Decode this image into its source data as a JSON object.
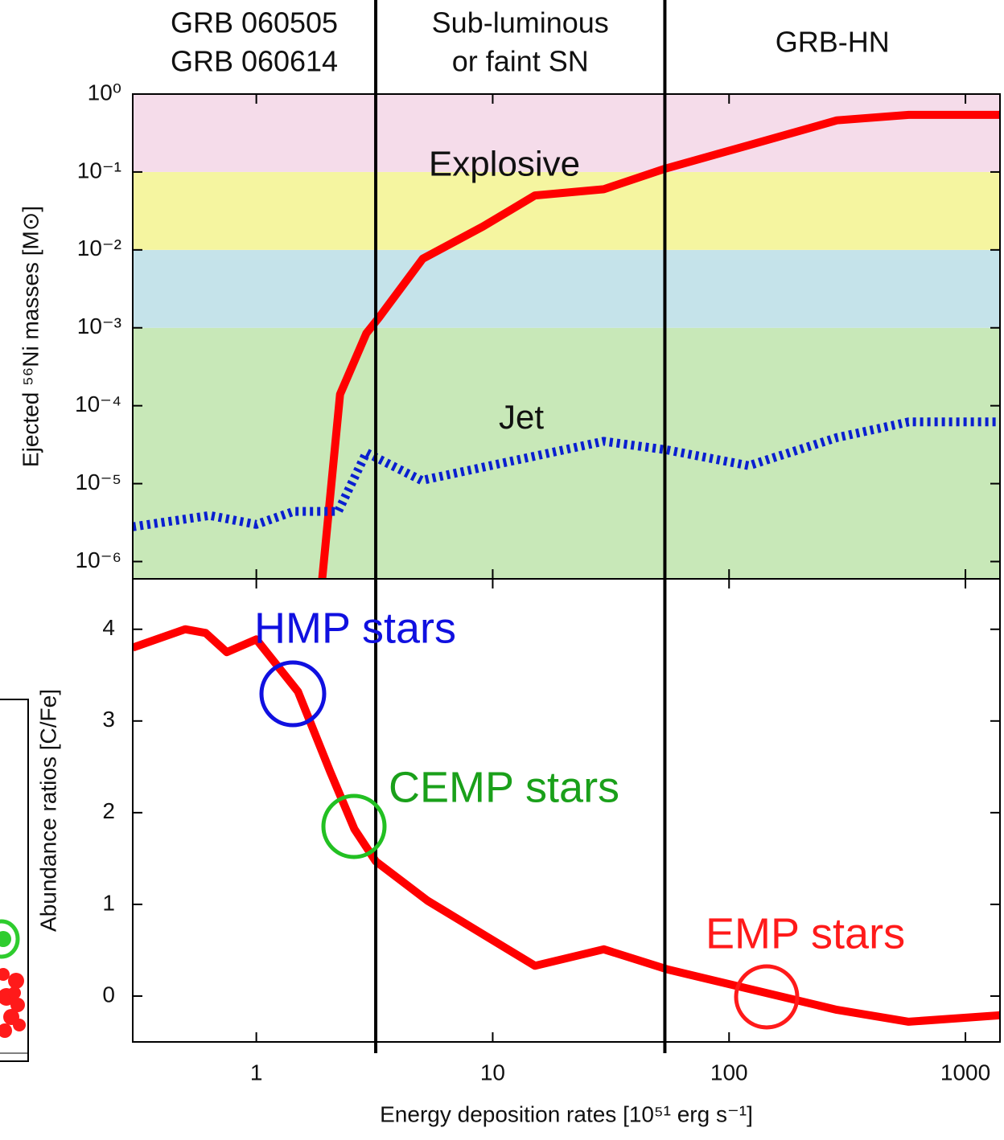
{
  "chart_data": [
    {
      "type": "line",
      "header_regions": [
        [
          "GRB 060505",
          "GRB 060614"
        ],
        [
          "Sub-luminous",
          "or faint SN"
        ],
        [
          "GRB-HN"
        ]
      ],
      "ylabel": "Ejected ⁵⁶Ni masses [M⊙]",
      "xscale": "log",
      "yscale": "log",
      "xlim": [
        0.3,
        1400
      ],
      "ylim": [
        6e-07,
        1
      ],
      "xticks": [
        1,
        10,
        100,
        1000
      ],
      "yticks": [
        {
          "value": 1,
          "label": "10⁰"
        },
        {
          "value": 0.1,
          "label": "10⁻¹"
        },
        {
          "value": 0.01,
          "label": "10⁻²"
        },
        {
          "value": 0.001,
          "label": "10⁻³"
        },
        {
          "value": 0.0001,
          "label": "10⁻⁴"
        },
        {
          "value": 1e-05,
          "label": "10⁻⁵"
        },
        {
          "value": 1e-06,
          "label": "10⁻⁶"
        }
      ],
      "band_edges": [
        0.001,
        0.01,
        0.1
      ],
      "band_colors": [
        "#c8e8b8",
        "#c5e3ea",
        "#f5f5a0",
        "#f5dcea"
      ],
      "vlines": [
        3.2,
        53.5
      ],
      "series": [
        {
          "name": "Explosive",
          "color": "#ff0000",
          "style": "solid",
          "x": [
            1.9,
            2.26,
            2.92,
            3.3,
            5.06,
            9.1,
            15.1,
            29.5,
            53.5,
            121,
            286,
            575,
            1400
          ],
          "values": [
            6e-07,
            0.00014,
            0.00085,
            0.00135,
            0.0077,
            0.02,
            0.05,
            0.06,
            0.11,
            0.22,
            0.46,
            0.54,
            0.54
          ]
        },
        {
          "name": "Jet",
          "color": "#0a1fd0",
          "style": "dotted",
          "x": [
            0.3,
            0.635,
            1.0,
            1.44,
            2.22,
            2.92,
            5.0,
            29.5,
            55,
            121,
            286,
            575,
            1400
          ],
          "values": [
            2.8e-06,
            3.9e-06,
            3e-06,
            4.4e-06,
            4.4e-06,
            2.5e-05,
            1.1e-05,
            3.5e-05,
            2.7e-05,
            1.7e-05,
            3.9e-05,
            6.2e-05,
            6.2e-05
          ]
        }
      ]
    },
    {
      "type": "line",
      "xlabel": "Energy deposition rates [10⁵¹ erg s⁻¹]",
      "ylabel": "Abundance ratios [C/Fe]",
      "xscale": "log",
      "xlim": [
        0.3,
        1400
      ],
      "ylim": [
        -0.5,
        4.55
      ],
      "xticks": [
        1,
        10,
        100,
        1000
      ],
      "yticks": [
        0,
        1,
        2,
        3,
        4
      ],
      "annotations": [
        "HMP stars",
        "CEMP stars",
        "EMP stars"
      ],
      "series": [
        {
          "color": "#ff0000",
          "style": "solid",
          "x": [
            0.3,
            0.5,
            0.61,
            0.75,
            1.0,
            1.5,
            2.06,
            2.6,
            3.2,
            5.3,
            15.1,
            29.5,
            55,
            286,
            575,
            1400
          ],
          "values": [
            3.8,
            4.0,
            3.96,
            3.75,
            3.89,
            3.32,
            2.44,
            1.82,
            1.47,
            1.04,
            0.33,
            0.51,
            0.29,
            -0.15,
            -0.28,
            -0.21
          ]
        }
      ]
    }
  ]
}
